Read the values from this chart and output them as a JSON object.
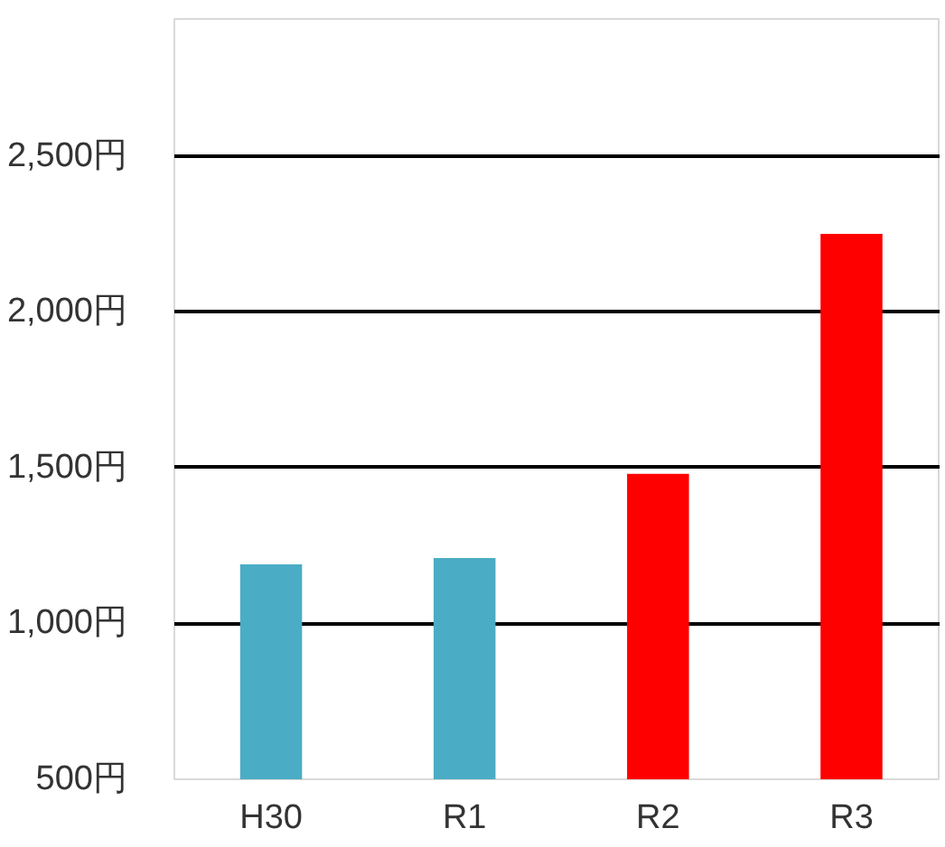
{
  "chart_data": {
    "type": "bar",
    "categories": [
      "H30",
      "R1",
      "R2",
      "R3"
    ],
    "values": [
      1190,
      1210,
      1480,
      2250
    ],
    "colors": [
      "#4bacc6",
      "#4bacc6",
      "#ff0000",
      "#ff0000"
    ],
    "ylim": [
      500,
      2940
    ],
    "yticks": [
      {
        "value": 500,
        "label": "500円"
      },
      {
        "value": 1000,
        "label": "1,000円"
      },
      {
        "value": 1500,
        "label": "1,500円"
      },
      {
        "value": 2000,
        "label": "2,000円"
      },
      {
        "value": 2500,
        "label": "2,500円"
      }
    ],
    "grid": "y"
  }
}
